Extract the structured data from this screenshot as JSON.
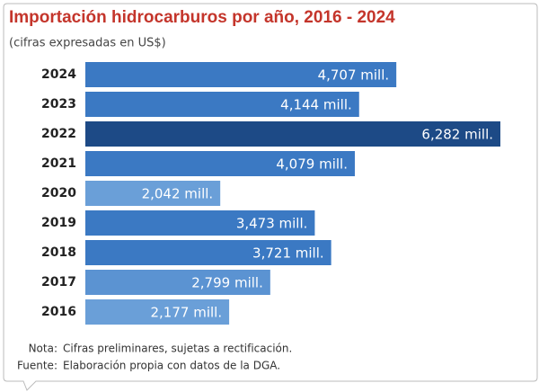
{
  "chart_data": {
    "type": "bar",
    "orientation": "horizontal",
    "title": "Importación hidrocarburos por año, 2016 - 2024",
    "subtitle": "(cifras expresadas en US$)",
    "categories": [
      "2024",
      "2023",
      "2022",
      "2021",
      "2020",
      "2019",
      "2018",
      "2017",
      "2016"
    ],
    "values": [
      4707,
      4144,
      6282,
      4079,
      2042,
      3473,
      3721,
      2799,
      2177
    ],
    "value_labels": [
      "4,707 mill.",
      "4,144 mill.",
      "6,282 mill.",
      "4,079 mill.",
      "2,042 mill.",
      "3,473 mill.",
      "3,721 mill.",
      "2,799 mill.",
      "2,177 mill."
    ],
    "colors": [
      "#3b79c3",
      "#3b79c3",
      "#1d4a86",
      "#3b79c3",
      "#6a9fd8",
      "#3b79c3",
      "#3b79c3",
      "#5b93d2",
      "#6a9fd8"
    ],
    "notes": [
      {
        "label": "Nota:",
        "text": "Cifras preliminares, sujetas a rectificación."
      },
      {
        "label": "Fuente:",
        "text": "Elaboración propia con datos de la DGA."
      }
    ]
  }
}
